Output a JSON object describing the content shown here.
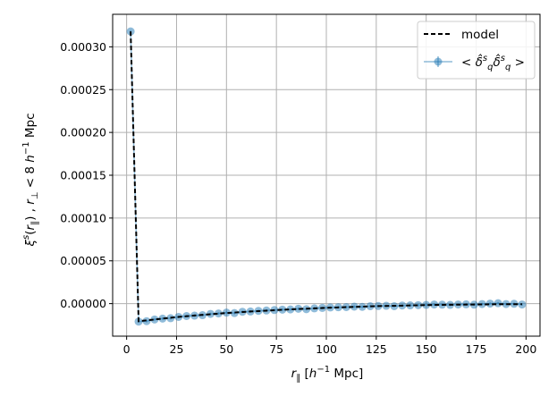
{
  "chart_data": {
    "type": "line",
    "xlabel": "r_∥  [h⁻¹ Mpc]",
    "ylabel": "ξˢ(r_∥) , r_⊥ < 8 h⁻¹ Mpc",
    "xlim": [
      -7,
      207
    ],
    "ylim": [
      -3.8e-05,
      0.000338
    ],
    "grid": true,
    "legend_position": "top-right",
    "x_ticks": [
      {
        "value": 0,
        "label": "0"
      },
      {
        "value": 25,
        "label": "25"
      },
      {
        "value": 50,
        "label": "50"
      },
      {
        "value": 75,
        "label": "75"
      },
      {
        "value": 100,
        "label": "100"
      },
      {
        "value": 125,
        "label": "125"
      },
      {
        "value": 150,
        "label": "150"
      },
      {
        "value": 175,
        "label": "175"
      },
      {
        "value": 200,
        "label": "200"
      }
    ],
    "y_ticks": [
      {
        "value": 0.0,
        "label": "0.00000"
      },
      {
        "value": 5e-05,
        "label": "0.00005"
      },
      {
        "value": 0.0001,
        "label": "0.00010"
      },
      {
        "value": 0.00015,
        "label": "0.00015"
      },
      {
        "value": 0.0002,
        "label": "0.00020"
      },
      {
        "value": 0.00025,
        "label": "0.00025"
      },
      {
        "value": 0.0003,
        "label": "0.00030"
      }
    ],
    "series": [
      {
        "name": "model",
        "style": "dashed",
        "color": "#000000",
        "x": [
          2,
          6,
          10,
          14,
          18,
          22,
          26,
          30,
          34,
          38,
          42,
          46,
          50,
          54,
          58,
          62,
          66,
          70,
          74,
          78,
          82,
          86,
          90,
          94,
          98,
          102,
          106,
          110,
          114,
          118,
          122,
          126,
          130,
          134,
          138,
          142,
          146,
          150,
          154,
          158,
          162,
          166,
          170,
          174,
          178,
          182,
          186,
          190,
          194,
          198
        ],
        "y": [
          0.000318,
          -2.05e-05,
          -1.95e-05,
          -1.85e-05,
          -1.75e-05,
          -1.65e-05,
          -1.55e-05,
          -1.47e-05,
          -1.39e-05,
          -1.31e-05,
          -1.24e-05,
          -1.17e-05,
          -1.1e-05,
          -1.04e-05,
          -9.8e-06,
          -9.2e-06,
          -8.7e-06,
          -8.2e-06,
          -7.7e-06,
          -7.2e-06,
          -6.7e-06,
          -6.3e-06,
          -5.9e-06,
          -5.5e-06,
          -5.1e-06,
          -4.7e-06,
          -4.4e-06,
          -4.1e-06,
          -3.8e-06,
          -3.5e-06,
          -3.2e-06,
          -2.9e-06,
          -2.7e-06,
          -2.5e-06,
          -2.3e-06,
          -2.1e-06,
          -1.9e-06,
          -1.7e-06,
          -1.5e-06,
          -1.4e-06,
          -1.3e-06,
          -1.2e-06,
          -1.1e-06,
          -1e-06,
          -9e-07,
          -8e-07,
          -7e-07,
          -7e-07,
          -6e-07,
          -6e-07
        ]
      },
      {
        "name": "< δ̂ˢ_q δ̂ˢ_q >",
        "style": "errorbar-markers",
        "color": "#1f77b4",
        "x": [
          2,
          6,
          10,
          14,
          18,
          22,
          26,
          30,
          34,
          38,
          42,
          46,
          50,
          54,
          58,
          62,
          66,
          70,
          74,
          78,
          82,
          86,
          90,
          94,
          98,
          102,
          106,
          110,
          114,
          118,
          122,
          126,
          130,
          134,
          138,
          142,
          146,
          150,
          154,
          158,
          162,
          166,
          170,
          174,
          178,
          182,
          186,
          190,
          194,
          198
        ],
        "y": [
          0.000318,
          -2.1e-05,
          -2.05e-05,
          -1.85e-05,
          -1.75e-05,
          -1.7e-05,
          -1.55e-05,
          -1.45e-05,
          -1.4e-05,
          -1.35e-05,
          -1.2e-05,
          -1.15e-05,
          -1.05e-05,
          -1.1e-05,
          -9.5e-06,
          -9.2e-06,
          -8.5e-06,
          -8e-06,
          -7.5e-06,
          -7e-06,
          -6.8e-06,
          -6e-06,
          -6.5e-06,
          -5.5e-06,
          -5e-06,
          -4.5e-06,
          -4.2e-06,
          -4e-06,
          -3.5e-06,
          -3.8e-06,
          -3e-06,
          -2.8e-06,
          -2.5e-06,
          -3e-06,
          -2.2e-06,
          -2e-06,
          -1.8e-06,
          -1.5e-06,
          -1e-06,
          -1.2e-06,
          -1.5e-06,
          -1e-06,
          -8e-07,
          -1.2e-06,
          -5e-07,
          0.0,
          5e-07,
          -5e-07,
          -2e-07,
          -1e-06
        ],
        "yerr": [
          1.5e-06,
          1.5e-06,
          1.5e-06,
          1.5e-06,
          1.5e-06,
          1.5e-06,
          1.5e-06,
          1.5e-06,
          1.5e-06,
          1.5e-06,
          1.5e-06,
          1.5e-06,
          1.5e-06,
          1.5e-06,
          1.5e-06,
          1.5e-06,
          1.5e-06,
          1.5e-06,
          1.5e-06,
          1.5e-06,
          1.5e-06,
          1.5e-06,
          1.5e-06,
          1.5e-06,
          1.5e-06,
          1.5e-06,
          1.5e-06,
          1.5e-06,
          1.5e-06,
          1.5e-06,
          1.5e-06,
          1.5e-06,
          1.5e-06,
          1.5e-06,
          1.5e-06,
          1.5e-06,
          1.5e-06,
          1.5e-06,
          1.5e-06,
          1.5e-06,
          1.5e-06,
          1.5e-06,
          1.5e-06,
          1.5e-06,
          1.5e-06,
          1.5e-06,
          1.5e-06,
          1.5e-06,
          1.5e-06,
          1.5e-06
        ]
      }
    ]
  }
}
